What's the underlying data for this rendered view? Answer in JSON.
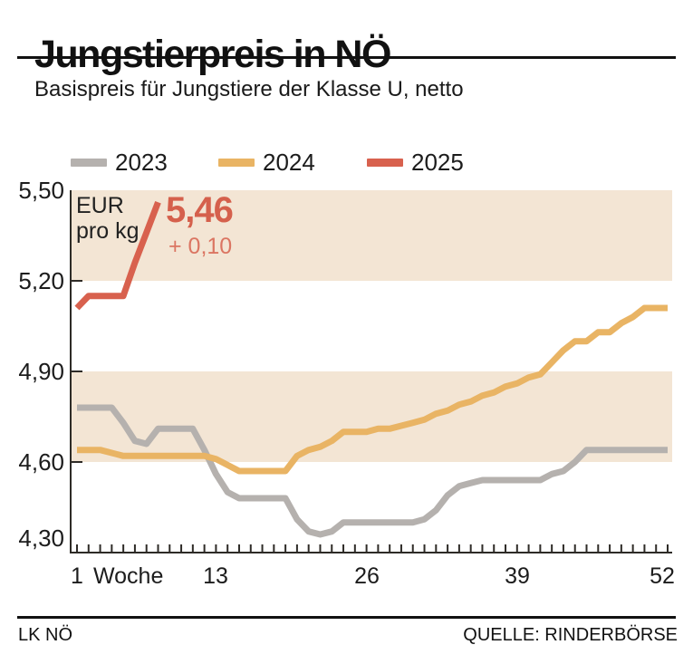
{
  "header": {
    "title": "Jungstierpreis in NÖ",
    "subtitle": "Basispreis für Jungstiere der Klasse U, netto"
  },
  "chart_data": {
    "type": "line",
    "title": "Jungstierpreis in NÖ",
    "x_axis_label": "Woche",
    "x_ticks": [
      "1",
      "13",
      "26",
      "39",
      "52"
    ],
    "y_ticks": [
      "5,50",
      "5,20",
      "4,90",
      "4,60",
      "4,30"
    ],
    "y_unit": {
      "line1": "EUR",
      "line2": "pro kg"
    },
    "xlim": [
      1,
      52
    ],
    "ylim": [
      4.3,
      5.5
    ],
    "grid": false,
    "legend_position": "top",
    "shaded_bands": [
      [
        4.6,
        4.9
      ],
      [
        5.2,
        5.5
      ]
    ],
    "band_color": "#f3e5d4",
    "axis_color": "#2e2b27",
    "series": [
      {
        "name": "2023",
        "color": "#b5b1ae",
        "start_week": 1,
        "values": [
          4.78,
          4.78,
          4.78,
          4.78,
          4.73,
          4.67,
          4.66,
          4.71,
          4.71,
          4.71,
          4.71,
          4.64,
          4.56,
          4.5,
          4.48,
          4.48,
          4.48,
          4.48,
          4.48,
          4.41,
          4.37,
          4.36,
          4.37,
          4.4,
          4.4,
          4.4,
          4.4,
          4.4,
          4.4,
          4.4,
          4.41,
          4.44,
          4.49,
          4.52,
          4.53,
          4.54,
          4.54,
          4.54,
          4.54,
          4.54,
          4.54,
          4.56,
          4.57,
          4.6,
          4.64,
          4.64,
          4.64,
          4.64,
          4.64,
          4.64,
          4.64,
          4.64
        ]
      },
      {
        "name": "2024",
        "color": "#e9b464",
        "start_week": 1,
        "values": [
          4.64,
          4.64,
          4.64,
          4.63,
          4.62,
          4.62,
          4.62,
          4.62,
          4.62,
          4.62,
          4.62,
          4.62,
          4.61,
          4.59,
          4.57,
          4.57,
          4.57,
          4.57,
          4.57,
          4.62,
          4.64,
          4.65,
          4.67,
          4.7,
          4.7,
          4.7,
          4.71,
          4.71,
          4.72,
          4.73,
          4.74,
          4.76,
          4.77,
          4.79,
          4.8,
          4.82,
          4.83,
          4.85,
          4.86,
          4.88,
          4.89,
          4.93,
          4.97,
          5.0,
          5.0,
          5.03,
          5.03,
          5.06,
          5.08,
          5.11,
          5.11,
          5.11
        ]
      },
      {
        "name": "2025",
        "color": "#d8614e",
        "start_week": 1,
        "values": [
          5.11,
          5.15,
          5.15,
          5.15,
          5.15,
          5.26,
          5.36,
          5.46
        ]
      }
    ],
    "annotation": {
      "value": "5,46",
      "change": "+ 0,10",
      "color": "#d5604c",
      "change_color": "#db7562"
    }
  },
  "footer": {
    "credit": "LK NÖ",
    "source": "QUELLE: RINDERBÖRSE"
  }
}
